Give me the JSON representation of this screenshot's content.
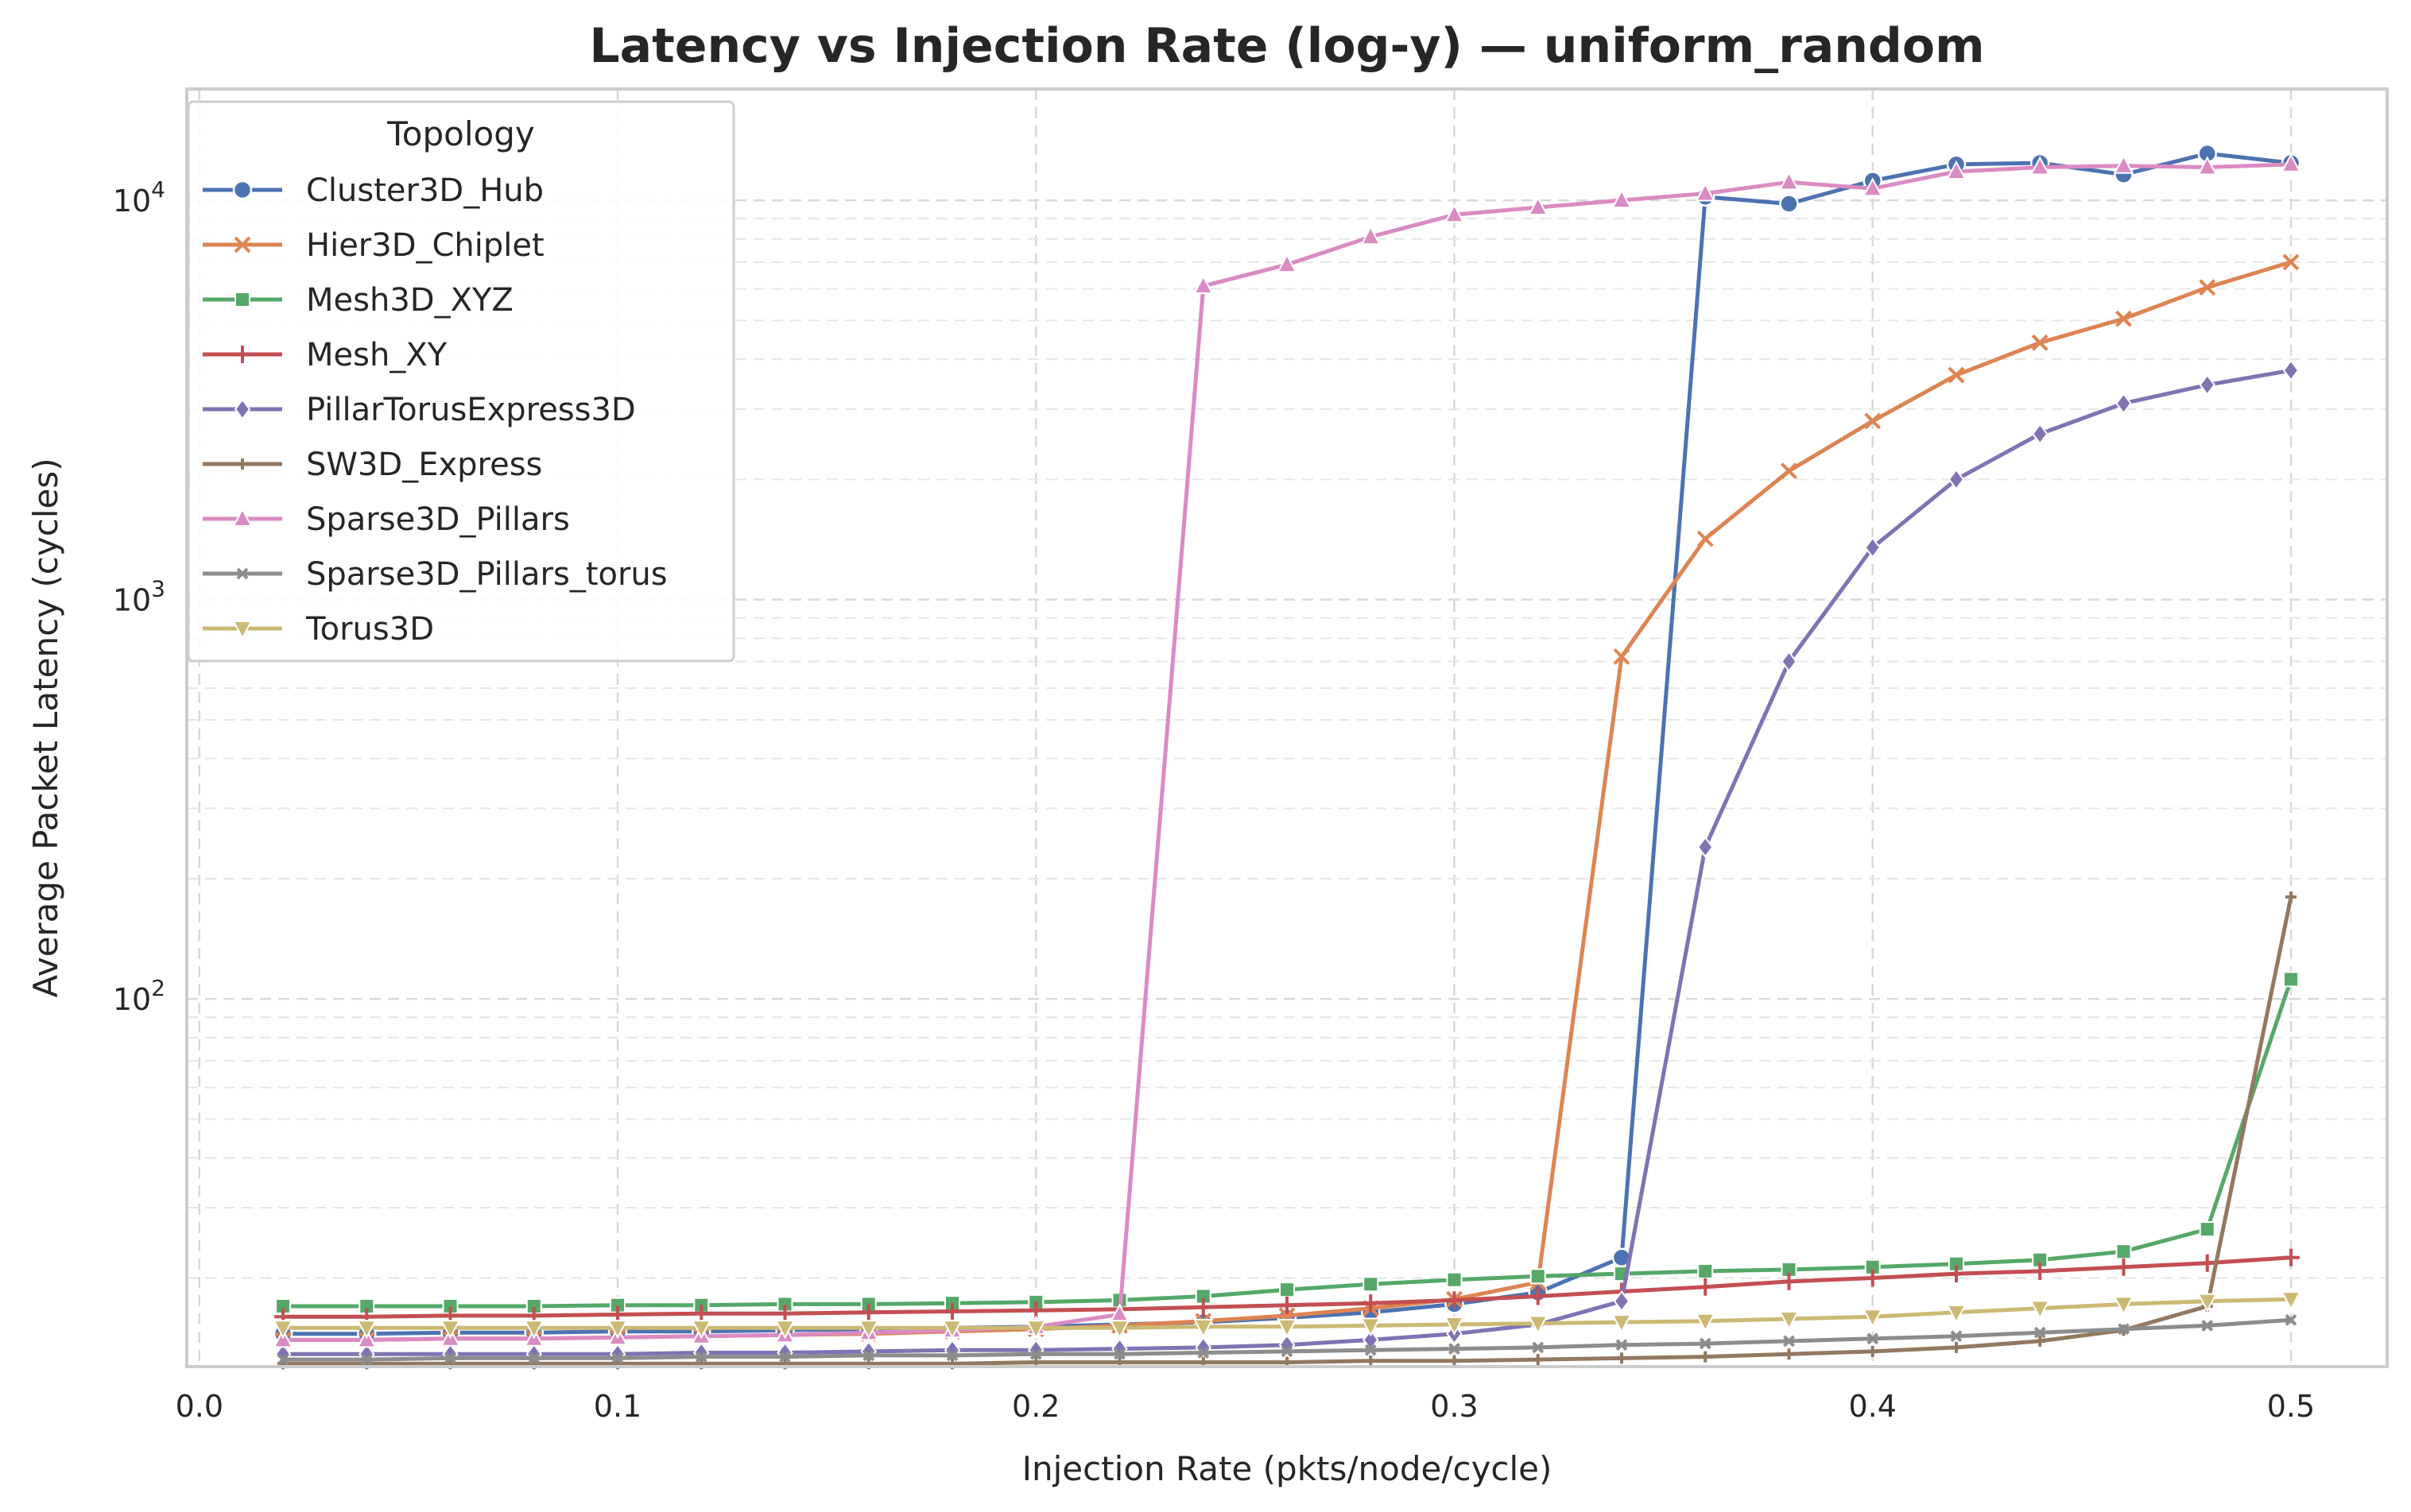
{
  "chart_data": {
    "type": "line",
    "title": "Latency vs Injection Rate (log-y) — uniform_random",
    "xlabel": "Injection Rate (pkts/node/cycle)",
    "ylabel": "Average Packet Latency (cycles)",
    "xlim": [
      -0.003,
      0.523
    ],
    "ylim": [
      12,
      19000
    ],
    "yscale": "log",
    "grid": true,
    "legend": {
      "title": "Topology",
      "placement": "top-left"
    },
    "x_ticks": [
      {
        "value": 0.0,
        "label": "0.0"
      },
      {
        "value": 0.1,
        "label": "0.1"
      },
      {
        "value": 0.2,
        "label": "0.2"
      },
      {
        "value": 0.3,
        "label": "0.3"
      },
      {
        "value": 0.4,
        "label": "0.4"
      },
      {
        "value": 0.5,
        "label": "0.5"
      }
    ],
    "y_ticks": [
      {
        "value": 100,
        "base": "10",
        "exp": "2"
      },
      {
        "value": 1000,
        "base": "10",
        "exp": "3"
      },
      {
        "value": 10000,
        "base": "10",
        "exp": "4"
      }
    ],
    "x": [
      0.02,
      0.04,
      0.06,
      0.08,
      0.1,
      0.12,
      0.14,
      0.16,
      0.18,
      0.2,
      0.22,
      0.24,
      0.26,
      0.28,
      0.3,
      0.32,
      0.34,
      0.36,
      0.38,
      0.4,
      0.42,
      0.44,
      0.46,
      0.48,
      0.5
    ],
    "series": [
      {
        "name": "Cluster3D_Hub",
        "color": "#4c72b0",
        "marker": "circle",
        "values": [
          14.5,
          14.5,
          14.6,
          14.6,
          14.7,
          14.7,
          14.8,
          14.9,
          15.0,
          15.1,
          15.3,
          15.5,
          15.9,
          16.4,
          17.2,
          18.4,
          22.5,
          10200,
          9800,
          11200,
          12300,
          12400,
          11600,
          13100,
          12400
        ]
      },
      {
        "name": "Hier3D_Chiplet",
        "color": "#dd8452",
        "marker": "x",
        "values": [
          14.0,
          14.0,
          14.1,
          14.1,
          14.2,
          14.3,
          14.4,
          14.5,
          14.7,
          14.9,
          15.2,
          15.6,
          16.1,
          16.8,
          17.7,
          19.5,
          720,
          1420,
          2100,
          2800,
          3650,
          4400,
          5050,
          6050,
          7000
        ]
      },
      {
        "name": "Mesh3D_XYZ",
        "color": "#55a868",
        "marker": "square",
        "values": [
          17.0,
          17.0,
          17.0,
          17.0,
          17.1,
          17.1,
          17.2,
          17.2,
          17.3,
          17.4,
          17.6,
          18.0,
          18.7,
          19.3,
          19.8,
          20.2,
          20.5,
          20.8,
          21.0,
          21.3,
          21.7,
          22.2,
          23.3,
          26.5,
          112
        ]
      },
      {
        "name": "Mesh_XY",
        "color": "#c44e52",
        "marker": "plus",
        "values": [
          16.0,
          16.0,
          16.1,
          16.1,
          16.2,
          16.3,
          16.3,
          16.4,
          16.5,
          16.6,
          16.7,
          16.9,
          17.1,
          17.3,
          17.6,
          18.0,
          18.5,
          19.0,
          19.6,
          20.0,
          20.5,
          20.8,
          21.3,
          21.8,
          22.5
        ]
      },
      {
        "name": "PillarTorusExpress3D",
        "color": "#8172b3",
        "marker": "diamond",
        "values": [
          12.9,
          12.9,
          12.9,
          12.9,
          12.9,
          13.0,
          13.0,
          13.1,
          13.2,
          13.2,
          13.3,
          13.4,
          13.6,
          14.0,
          14.5,
          15.3,
          17.5,
          240,
          700,
          1350,
          2000,
          2600,
          3100,
          3450,
          3750
        ]
      },
      {
        "name": "SW3D_Express",
        "color": "#937860",
        "marker": "plus-small",
        "values": [
          12.2,
          12.2,
          12.2,
          12.2,
          12.2,
          12.2,
          12.2,
          12.2,
          12.2,
          12.3,
          12.3,
          12.3,
          12.3,
          12.4,
          12.4,
          12.5,
          12.6,
          12.7,
          12.9,
          13.1,
          13.4,
          13.9,
          14.8,
          17.0,
          180
        ]
      },
      {
        "name": "Sparse3D_Pillars",
        "color": "#da8bc3",
        "marker": "triangle-up",
        "values": [
          14.0,
          14.0,
          14.1,
          14.1,
          14.2,
          14.3,
          14.4,
          14.6,
          14.8,
          15.1,
          16.2,
          6100,
          6900,
          8100,
          9200,
          9600,
          10000,
          10400,
          11100,
          10700,
          11800,
          12100,
          12200,
          12100,
          12300
        ]
      },
      {
        "name": "Sparse3D_Pillars_torus",
        "color": "#8c8c8c",
        "marker": "x-small",
        "values": [
          12.5,
          12.5,
          12.6,
          12.6,
          12.6,
          12.7,
          12.7,
          12.8,
          12.8,
          12.9,
          12.9,
          13.0,
          13.1,
          13.2,
          13.3,
          13.4,
          13.6,
          13.7,
          13.9,
          14.1,
          14.3,
          14.6,
          14.9,
          15.2,
          15.7
        ]
      },
      {
        "name": "Torus3D",
        "color": "#ccb974",
        "marker": "triangle-down",
        "values": [
          15.0,
          15.0,
          15.0,
          15.0,
          15.0,
          15.0,
          15.0,
          15.0,
          15.0,
          15.0,
          15.0,
          15.1,
          15.1,
          15.2,
          15.3,
          15.4,
          15.5,
          15.6,
          15.8,
          16.0,
          16.4,
          16.8,
          17.2,
          17.5,
          17.7
        ]
      }
    ]
  }
}
